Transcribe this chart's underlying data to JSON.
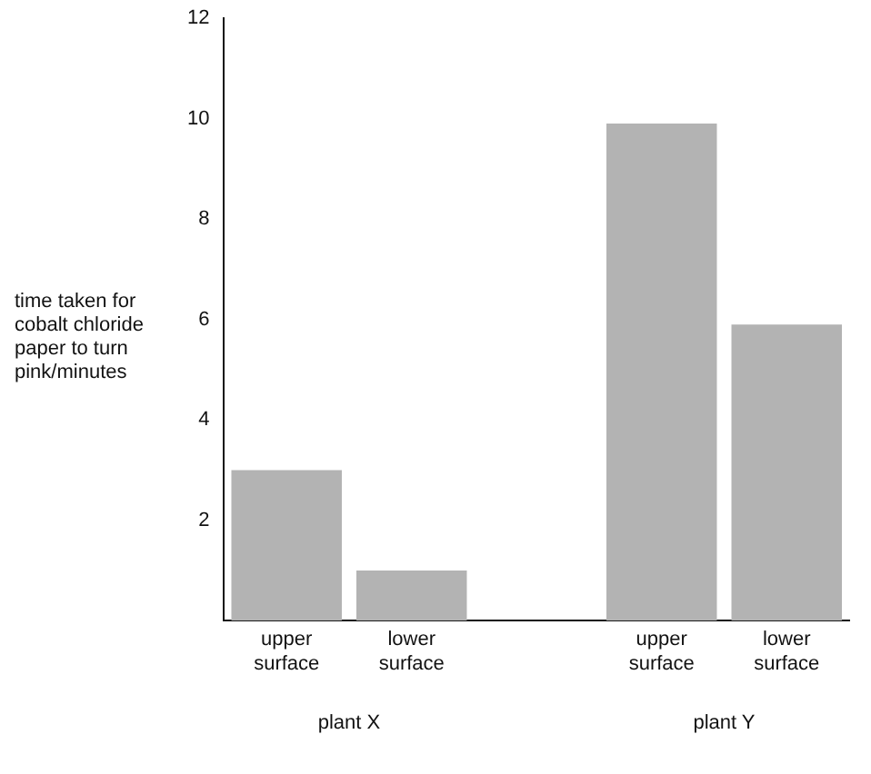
{
  "chart_data": {
    "type": "bar",
    "ylabel": "time taken for cobalt chloride paper to turn pink/minutes",
    "categories": [
      "upper surface",
      "lower surface",
      null,
      "upper surface",
      "lower surface"
    ],
    "values": [
      3,
      1,
      null,
      9.9,
      5.9
    ],
    "color": "#b3b3b3",
    "ylim": [
      0,
      12
    ],
    "yticks": [
      2,
      4,
      6,
      8,
      10,
      12
    ],
    "grid": false,
    "annotations": [
      "plant X",
      "plant Y"
    ]
  }
}
